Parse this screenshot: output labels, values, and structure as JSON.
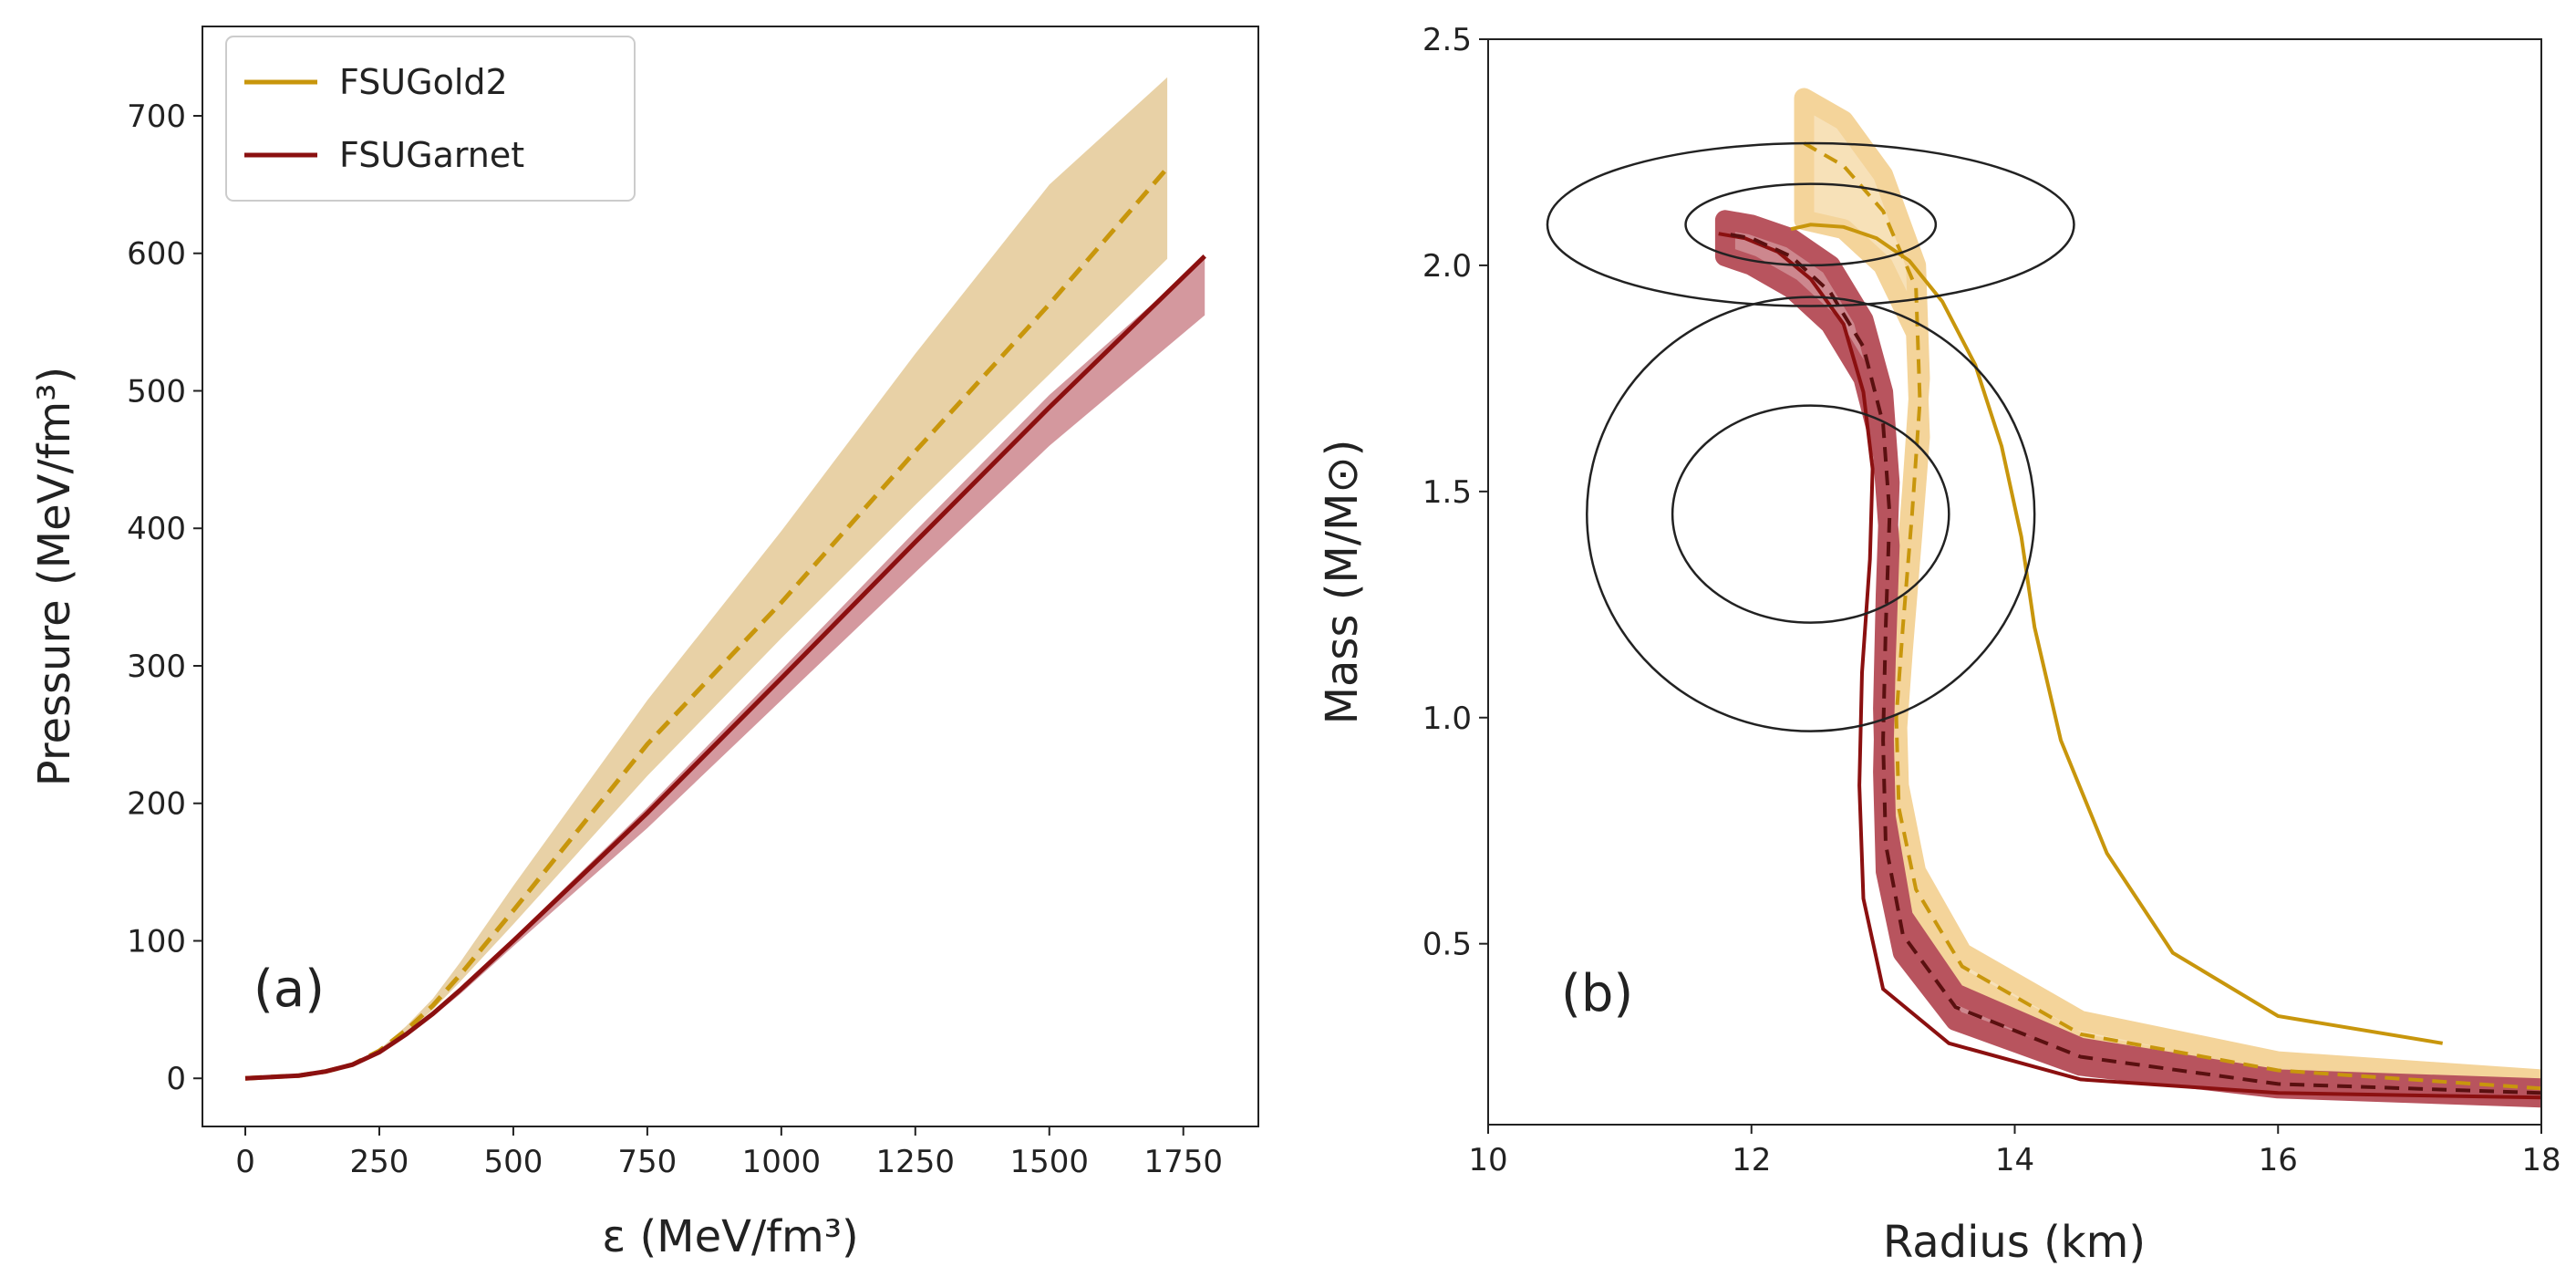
{
  "chart_data": [
    {
      "type": "line",
      "panel_label": "(a)",
      "xlabel": "ε (MeV/fm³)",
      "ylabel": "Pressure (MeV/fm³)",
      "xlim": [
        -80,
        1890
      ],
      "ylim": [
        -35,
        765
      ],
      "xticks": [
        0,
        250,
        500,
        750,
        1000,
        1250,
        1500,
        1750
      ],
      "yticks": [
        0,
        100,
        200,
        300,
        400,
        500,
        600,
        700
      ],
      "legend": {
        "position": "top-left",
        "entries": [
          "FSUGold2",
          "FSUGarnet"
        ]
      },
      "series": [
        {
          "name": "FSUGold2",
          "color": "#c8960c",
          "style": "dashed",
          "x": [
            0,
            100,
            150,
            200,
            250,
            300,
            350,
            400,
            500,
            750,
            1000,
            1250,
            1500,
            1720
          ],
          "y": [
            0,
            2,
            5,
            10,
            20,
            35,
            53,
            75,
            122,
            243,
            346,
            456,
            563,
            662
          ],
          "band_upper": [
            0,
            2,
            5,
            11,
            21,
            38,
            58,
            84,
            140,
            275,
            398,
            527,
            650,
            728
          ],
          "band_lower": [
            0,
            2,
            5,
            10,
            19,
            33,
            50,
            70,
            112,
            220,
            320,
            417,
            512,
            596
          ]
        },
        {
          "name": "FSUGarnet",
          "color": "#8b1010",
          "style": "solid",
          "x": [
            0,
            100,
            150,
            200,
            250,
            300,
            350,
            400,
            500,
            750,
            1000,
            1250,
            1500,
            1790
          ],
          "y": [
            0,
            2,
            5,
            10,
            19,
            32,
            47,
            64,
            100,
            193,
            291,
            390,
            488,
            598
          ],
          "band_upper": [
            0,
            2,
            5,
            10,
            19,
            32,
            48,
            65,
            102,
            197,
            297,
            398,
            497,
            597
          ],
          "band_lower": [
            0,
            2,
            5,
            10,
            19,
            31,
            45,
            61,
            96,
            182,
            275,
            368,
            460,
            555
          ]
        }
      ]
    },
    {
      "type": "line",
      "panel_label": "(b)",
      "xlabel": "Radius (km)",
      "ylabel": "Mass (M/M⊙)",
      "xlim": [
        10,
        18
      ],
      "ylim": [
        0.1,
        2.5
      ],
      "xticks": [
        10,
        12,
        14,
        16,
        18
      ],
      "yticks": [
        0.5,
        1.0,
        1.5,
        2.0,
        2.5
      ],
      "series": [
        {
          "name": "FSUGold2 (solid)",
          "color": "#c8960c",
          "style": "solid",
          "x": [
            17.25,
            16.0,
            15.2,
            14.7,
            14.35,
            14.15,
            14.05,
            13.9,
            13.7,
            13.45,
            13.2,
            12.95,
            12.7,
            12.45,
            12.3
          ],
          "y": [
            0.28,
            0.34,
            0.48,
            0.7,
            0.95,
            1.2,
            1.4,
            1.6,
            1.78,
            1.92,
            2.01,
            2.06,
            2.085,
            2.09,
            2.08
          ]
        },
        {
          "name": "FSUGold2 band (dashed)",
          "color": "#c8960c",
          "style": "dashed",
          "x": [
            18.0,
            16.0,
            14.5,
            13.6,
            13.25,
            13.12,
            13.1,
            13.15,
            13.22,
            13.28,
            13.25,
            13.0,
            12.7,
            12.4
          ],
          "y": [
            0.18,
            0.22,
            0.3,
            0.45,
            0.62,
            0.8,
            1.0,
            1.2,
            1.45,
            1.7,
            1.95,
            2.12,
            2.22,
            2.27
          ],
          "band_upper": [
            0.2,
            0.24,
            0.33,
            0.48,
            0.66,
            0.85,
            1.05,
            1.25,
            1.5,
            1.75,
            2.0,
            2.2,
            2.32,
            2.37
          ],
          "band_lower": [
            0.16,
            0.2,
            0.28,
            0.42,
            0.58,
            0.75,
            0.95,
            1.15,
            1.4,
            1.62,
            1.85,
            2.0,
            2.08,
            2.1
          ]
        },
        {
          "name": "FSUGarnet (solid)",
          "color": "#8b1010",
          "style": "solid",
          "x": [
            18.0,
            16.0,
            14.5,
            13.5,
            13.0,
            12.85,
            12.82,
            12.84,
            12.9,
            12.92,
            12.85,
            12.7,
            12.45,
            12.2,
            11.95,
            11.75
          ],
          "y": [
            0.16,
            0.17,
            0.2,
            0.28,
            0.4,
            0.6,
            0.85,
            1.1,
            1.35,
            1.55,
            1.72,
            1.87,
            1.97,
            2.03,
            2.06,
            2.07
          ]
        },
        {
          "name": "FSUGarnet band (dashed)",
          "color": "#5a1010",
          "style": "dashed",
          "x": [
            18.0,
            16.0,
            14.5,
            13.55,
            13.15,
            13.02,
            13.0,
            13.02,
            13.05,
            13.0,
            12.85,
            12.6,
            12.3,
            12.0,
            11.8
          ],
          "y": [
            0.17,
            0.19,
            0.25,
            0.36,
            0.52,
            0.72,
            0.95,
            1.2,
            1.45,
            1.65,
            1.82,
            1.94,
            2.02,
            2.06,
            2.07
          ],
          "band_upper": [
            0.18,
            0.2,
            0.27,
            0.39,
            0.56,
            0.78,
            1.02,
            1.27,
            1.52,
            1.72,
            1.88,
            2.0,
            2.06,
            2.09,
            2.1
          ],
          "band_lower": [
            0.16,
            0.18,
            0.23,
            0.33,
            0.48,
            0.66,
            0.88,
            1.13,
            1.38,
            1.58,
            1.75,
            1.87,
            1.95,
            2.0,
            2.02
          ]
        }
      ],
      "contours": [
        {
          "center": [
            12.45,
            2.09
          ],
          "radius_x": 0.95,
          "radius_y": 0.09
        },
        {
          "center": [
            12.45,
            2.09
          ],
          "radius_x": 2.0,
          "radius_y": 0.18
        },
        {
          "center": [
            12.45,
            1.45
          ],
          "radius_x": 1.05,
          "radius_y": 0.24
        },
        {
          "center": [
            12.45,
            1.45
          ],
          "radius_x": 1.7,
          "radius_y": 0.48
        }
      ]
    }
  ]
}
